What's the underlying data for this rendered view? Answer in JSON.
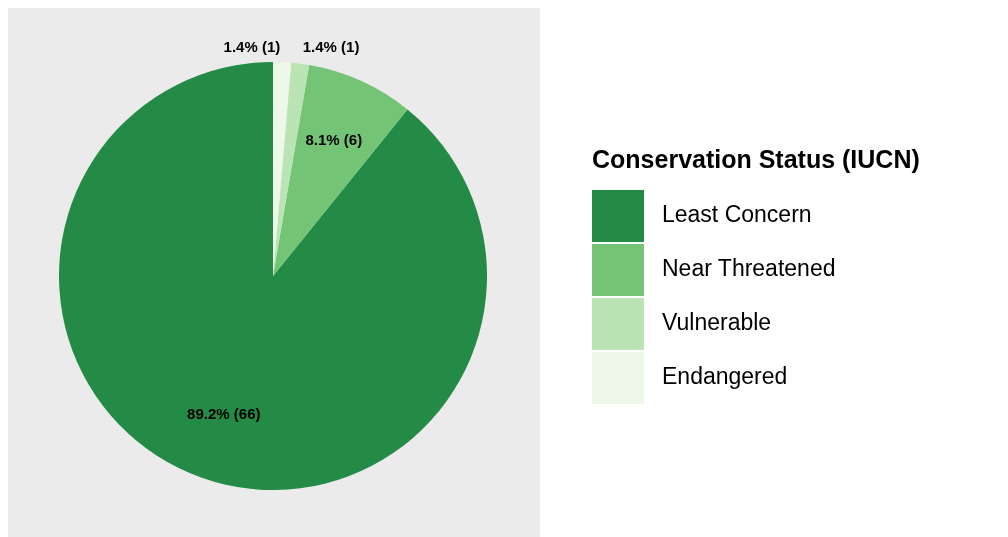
{
  "chart_data": {
    "type": "pie",
    "legend_title": "Conservation Status (IUCN)",
    "categories": [
      "Least Concern",
      "Near Threatened",
      "Vulnerable",
      "Endangered"
    ],
    "values": [
      66,
      6,
      1,
      1
    ],
    "colors": [
      "#238b45",
      "#74c476",
      "#bae4b3",
      "#edf8e9"
    ],
    "value_labels": [
      "89.2% (66)",
      "8.1% (6)",
      "1.4% (1)",
      "1.4% (1)"
    ],
    "legend": "right"
  }
}
